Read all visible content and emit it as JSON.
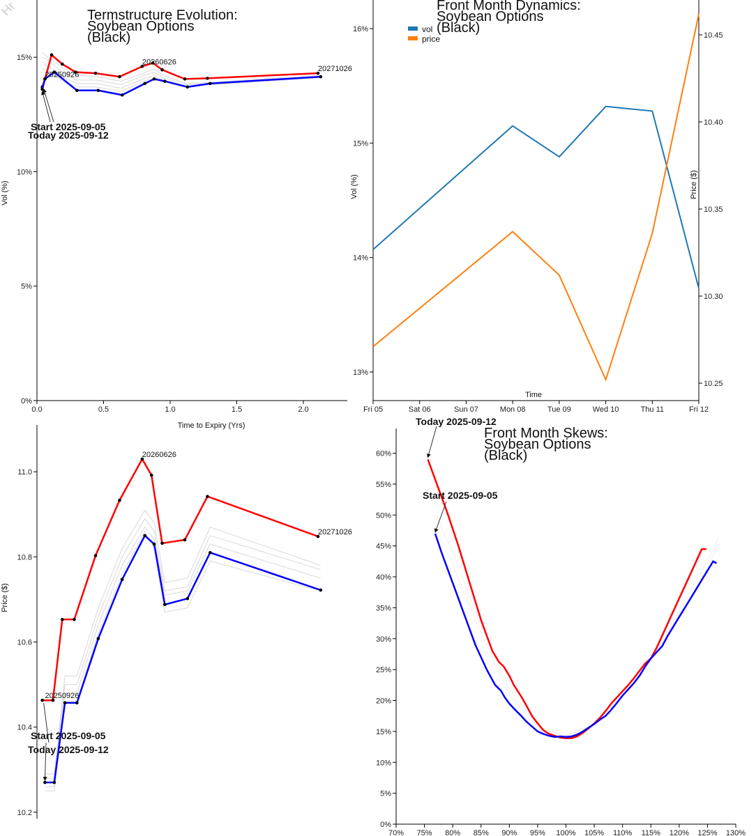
{
  "watermark": "Hr",
  "colors": {
    "today": "#ff0000",
    "start": "#0000ff",
    "history": "#d8d8d8",
    "vol": "#1f77b4",
    "price": "#ff7f0e",
    "axis": "#000000"
  },
  "chart_data": [
    {
      "id": "ts",
      "type": "line",
      "title": [
        "Termstructure Evolution:",
        "Soybean Options",
        "(Black)"
      ],
      "xlabel": "Time to Expiry (Yrs)",
      "ylabel": "Vol (%)",
      "xlim": [
        0,
        2.33
      ],
      "ylim": [
        0,
        17.5
      ],
      "xticks": [
        "0.0",
        "0.5",
        "1.0",
        "1.5",
        "2.0"
      ],
      "xtickvals": [
        0,
        0.5,
        1.0,
        1.5,
        2.0
      ],
      "yticks": [
        "0%",
        "5%",
        "10%",
        "15%"
      ],
      "ytickvals": [
        0,
        5,
        10,
        15
      ],
      "series": [
        {
          "name": "Today 2025-09-12",
          "x": [
            0.04,
            0.06,
            0.11,
            0.19,
            0.29,
            0.44,
            0.62,
            0.79,
            0.87,
            0.94,
            1.11,
            1.28,
            2.11
          ],
          "y": [
            13.7,
            14.05,
            15.1,
            14.7,
            14.35,
            14.3,
            14.15,
            14.6,
            14.75,
            14.45,
            14.05,
            14.08,
            14.3
          ]
        },
        {
          "name": "Start 2025-09-05",
          "x": [
            0.04,
            0.06,
            0.13,
            0.3,
            0.46,
            0.64,
            0.81,
            0.88,
            0.96,
            1.13,
            1.3,
            2.13
          ],
          "y": [
            13.6,
            14.05,
            14.35,
            13.55,
            13.55,
            13.35,
            13.85,
            14.05,
            13.95,
            13.7,
            13.85,
            14.15
          ]
        }
      ],
      "history": [
        {
          "x": [
            0.04,
            0.08,
            0.12,
            0.2,
            0.3,
            0.45,
            0.63,
            0.8,
            0.88,
            0.95,
            1.12,
            1.29,
            2.12
          ],
          "y": [
            15.2,
            15.0,
            14.85,
            14.5,
            14.2,
            14.15,
            13.95,
            14.3,
            14.5,
            14.2,
            13.85,
            13.9,
            14.2
          ]
        },
        {
          "x": [
            0.04,
            0.08,
            0.12,
            0.2,
            0.3,
            0.45,
            0.63,
            0.8,
            0.88,
            0.95,
            1.12,
            1.29,
            2.12
          ],
          "y": [
            15.0,
            14.9,
            14.7,
            14.3,
            14.0,
            14.0,
            13.8,
            14.2,
            14.35,
            14.1,
            13.8,
            13.85,
            14.15
          ]
        },
        {
          "x": [
            0.04,
            0.08,
            0.12,
            0.2,
            0.3,
            0.45,
            0.63,
            0.8,
            0.88,
            0.95,
            1.12,
            1.29,
            2.12
          ],
          "y": [
            14.8,
            14.6,
            14.5,
            14.1,
            13.85,
            13.85,
            13.65,
            14.05,
            14.2,
            14.0,
            13.75,
            13.8,
            14.1
          ]
        },
        {
          "x": [
            0.04,
            0.08,
            0.12,
            0.2,
            0.3,
            0.45,
            0.63,
            0.8,
            0.88,
            0.95,
            1.12,
            1.29,
            2.12
          ],
          "y": [
            14.5,
            14.4,
            14.3,
            13.9,
            13.7,
            13.7,
            13.5,
            13.95,
            14.1,
            13.95,
            13.7,
            13.8,
            14.1
          ]
        }
      ],
      "labels": [
        {
          "text": "20250926",
          "x": 0.06,
          "y": 14.05
        },
        {
          "text": "20260626",
          "x": 0.79,
          "y": 14.6
        },
        {
          "text": "20271026",
          "x": 2.11,
          "y": 14.3
        }
      ],
      "annotations": [
        {
          "text": "Start 2025-09-05",
          "x": 0.04,
          "y": 13.6
        },
        {
          "text": "Today 2025-09-12",
          "x": 0.04,
          "y": 13.7
        }
      ]
    },
    {
      "id": "fmd",
      "type": "line",
      "title": [
        "Front Month Dynamics:",
        "Soybean Options",
        "(Black)"
      ],
      "xlabel": "Time",
      "ylabel": "Vol (%)",
      "y2label": "Price ($)",
      "categories": [
        "Fri 05",
        "Sat 06",
        "Sun 07",
        "Mon 08",
        "Tue 09",
        "Wed 10",
        "Thu 11",
        "Fri 12"
      ],
      "ylim": [
        12.75,
        16.25
      ],
      "y2lim": [
        10.24,
        10.47
      ],
      "yticks": [
        "13%",
        "14%",
        "15%",
        "16%"
      ],
      "ytickvals": [
        13,
        14,
        15,
        16
      ],
      "y2ticks": [
        "10.25",
        "10.30",
        "10.35",
        "10.40",
        "10.45"
      ],
      "y2tickvals": [
        10.25,
        10.3,
        10.35,
        10.4,
        10.45
      ],
      "legend": [
        "vol",
        "price"
      ],
      "series": [
        {
          "name": "vol",
          "x": [
            0,
            3,
            4,
            5,
            6,
            7
          ],
          "y": [
            14.07,
            15.15,
            14.88,
            15.32,
            15.28,
            13.73
          ]
        },
        {
          "name": "price",
          "x": [
            0,
            3,
            4,
            5,
            6,
            7
          ],
          "y": [
            10.271,
            10.337,
            10.312,
            10.252,
            10.336,
            10.462
          ]
        }
      ]
    },
    {
      "id": "fp",
      "type": "line",
      "title": [],
      "xlabel": "",
      "ylabel": "Price ($)",
      "xlim": [
        0,
        2.33
      ],
      "ylim": [
        10.185,
        11.11
      ],
      "yticks": [
        "10.2",
        "10.4",
        "10.6",
        "10.8",
        "11.0"
      ],
      "ytickvals": [
        10.2,
        10.4,
        10.6,
        10.8,
        11.0
      ],
      "series": [
        {
          "name": "Today 2025-09-12",
          "x": [
            0.04,
            0.12,
            0.19,
            0.28,
            0.44,
            0.62,
            0.79,
            0.86,
            0.94,
            1.11,
            1.28,
            2.11
          ],
          "y": [
            10.463,
            10.463,
            10.653,
            10.653,
            10.803,
            10.933,
            11.03,
            10.992,
            10.832,
            10.84,
            10.942,
            10.848
          ]
        },
        {
          "name": "Start 2025-09-05",
          "x": [
            0.06,
            0.13,
            0.21,
            0.3,
            0.46,
            0.64,
            0.81,
            0.88,
            0.96,
            1.13,
            1.3,
            2.13
          ],
          "y": [
            10.27,
            10.27,
            10.457,
            10.457,
            10.608,
            10.747,
            10.85,
            10.83,
            10.688,
            10.702,
            10.81,
            10.722
          ]
        }
      ],
      "history": [
        {
          "x": [
            0.06,
            0.13,
            0.21,
            0.3,
            0.46,
            0.64,
            0.81,
            0.88,
            0.96,
            1.13,
            1.3,
            2.13
          ],
          "y": [
            10.29,
            10.29,
            10.52,
            10.52,
            10.68,
            10.82,
            10.91,
            10.88,
            10.74,
            10.75,
            10.87,
            10.78
          ]
        },
        {
          "x": [
            0.06,
            0.13,
            0.21,
            0.3,
            0.46,
            0.64,
            0.81,
            0.88,
            0.96,
            1.13,
            1.3,
            2.13
          ],
          "y": [
            10.28,
            10.28,
            10.5,
            10.5,
            10.66,
            10.8,
            10.89,
            10.86,
            10.72,
            10.73,
            10.85,
            10.77
          ]
        },
        {
          "x": [
            0.06,
            0.13,
            0.21,
            0.3,
            0.46,
            0.64,
            0.81,
            0.88,
            0.96,
            1.13,
            1.3,
            2.13
          ],
          "y": [
            10.26,
            10.26,
            10.48,
            10.48,
            10.64,
            10.78,
            10.87,
            10.84,
            10.71,
            10.72,
            10.83,
            10.75
          ]
        },
        {
          "x": [
            0.06,
            0.13,
            0.21,
            0.3,
            0.46,
            0.64,
            0.81,
            0.88,
            0.96,
            1.13,
            1.3,
            2.13
          ],
          "y": [
            10.25,
            10.25,
            10.46,
            10.46,
            10.62,
            10.76,
            10.86,
            10.82,
            10.67,
            10.68,
            10.79,
            10.72
          ]
        }
      ],
      "labels": [
        {
          "text": "20250926",
          "x": 0.06,
          "y": 10.463
        },
        {
          "text": "20260626",
          "x": 0.79,
          "y": 11.03
        },
        {
          "text": "20271026",
          "x": 2.11,
          "y": 10.848
        }
      ],
      "annotations": [
        {
          "text": "Start 2025-09-05",
          "x": 0.06,
          "y": 10.27
        },
        {
          "text": "Today 2025-09-12",
          "x": 0.04,
          "y": 10.463
        }
      ]
    },
    {
      "id": "sk",
      "type": "line",
      "title": [
        "Front Month Skews:",
        "Soybean Options",
        "(Black)"
      ],
      "xlabel": "",
      "ylabel": "",
      "xlim": [
        70,
        130
      ],
      "ylim": [
        0,
        64
      ],
      "xticks": [
        "70%",
        "75%",
        "80%",
        "85%",
        "90%",
        "95%",
        "100%",
        "105%",
        "110%",
        "115%",
        "120%",
        "125%",
        "130%"
      ],
      "xtickvals": [
        70,
        75,
        80,
        85,
        90,
        95,
        100,
        105,
        110,
        115,
        120,
        125,
        130
      ],
      "yticks": [
        "0%",
        "5%",
        "10%",
        "15%",
        "20%",
        "25%",
        "30%",
        "35%",
        "40%",
        "45%",
        "50%",
        "55%",
        "60%"
      ],
      "ytickvals": [
        0,
        5,
        10,
        15,
        20,
        25,
        30,
        35,
        40,
        45,
        50,
        55,
        60
      ],
      "series": [
        {
          "name": "Today 2025-09-12",
          "x": [
            75.6,
            77,
            79,
            81,
            83,
            85,
            87,
            88.2,
            89,
            90,
            90.8,
            91.5,
            92.2,
            93,
            94,
            95,
            96,
            97,
            98,
            99,
            100,
            101,
            102,
            103,
            104,
            105,
            106,
            107,
            108,
            109,
            110,
            111,
            112,
            113,
            114,
            115,
            116,
            117,
            118,
            119,
            120,
            121,
            122,
            123,
            124,
            124.8
          ],
          "y": [
            59,
            55.5,
            50.5,
            45,
            39,
            33,
            28,
            26.2,
            25.5,
            24,
            22.5,
            21.5,
            20.5,
            19.2,
            17.5,
            16.3,
            15.2,
            14.6,
            14.3,
            14.0,
            13.9,
            13.9,
            14.2,
            14.8,
            15.5,
            16.3,
            17.2,
            18.3,
            19.5,
            20.5,
            21.5,
            22.5,
            23.6,
            24.8,
            26.0,
            26.8,
            28.5,
            30.5,
            32.5,
            34.5,
            36.5,
            38.5,
            40.5,
            42.5,
            44.5,
            44.5
          ]
        },
        {
          "name": "Start 2025-09-05",
          "x": [
            76.9,
            78,
            80,
            82,
            84,
            86,
            87.5,
            88.5,
            89.2,
            90,
            91,
            92,
            93,
            94,
            95,
            96,
            97,
            98,
            99,
            100,
            101,
            102,
            103,
            104,
            105,
            106,
            107,
            108,
            109,
            110,
            111,
            112,
            113,
            114,
            115,
            116,
            117,
            118,
            119,
            120,
            121,
            122,
            123,
            124,
            125,
            126,
            126.6
          ],
          "y": [
            47,
            44,
            39,
            34,
            29,
            25,
            22.5,
            21.6,
            20.5,
            19.5,
            18.5,
            17.6,
            16.6,
            15.8,
            15.0,
            14.6,
            14.3,
            14.1,
            14.2,
            14.1,
            14.2,
            14.5,
            15.0,
            15.6,
            16.2,
            16.9,
            17.5,
            18.5,
            19.6,
            20.8,
            21.8,
            22.8,
            24.0,
            25.5,
            26.8,
            27.8,
            28.8,
            30.5,
            32.0,
            33.5,
            35.0,
            36.5,
            38.0,
            39.5,
            41.0,
            42.5,
            42.2
          ]
        }
      ],
      "history": [
        {
          "x": [
            77,
            80,
            85,
            90,
            95,
            100,
            105,
            110,
            115,
            120,
            125,
            127
          ],
          "y": [
            48,
            42,
            31,
            21,
            15.5,
            14.3,
            16.0,
            21.0,
            26.5,
            34.0,
            41.5,
            45.5
          ]
        },
        {
          "x": [
            77,
            80,
            85,
            90,
            95,
            100,
            105,
            110,
            115,
            120,
            125,
            127
          ],
          "y": [
            50,
            44,
            32,
            22,
            15.8,
            14.4,
            16.2,
            21.5,
            27.0,
            34.5,
            42.5,
            46.5
          ]
        }
      ],
      "annotations": [
        {
          "text": "Today 2025-09-12",
          "x": 75.6,
          "y": 59
        },
        {
          "text": "Start 2025-09-05",
          "x": 76.9,
          "y": 47
        }
      ]
    }
  ]
}
